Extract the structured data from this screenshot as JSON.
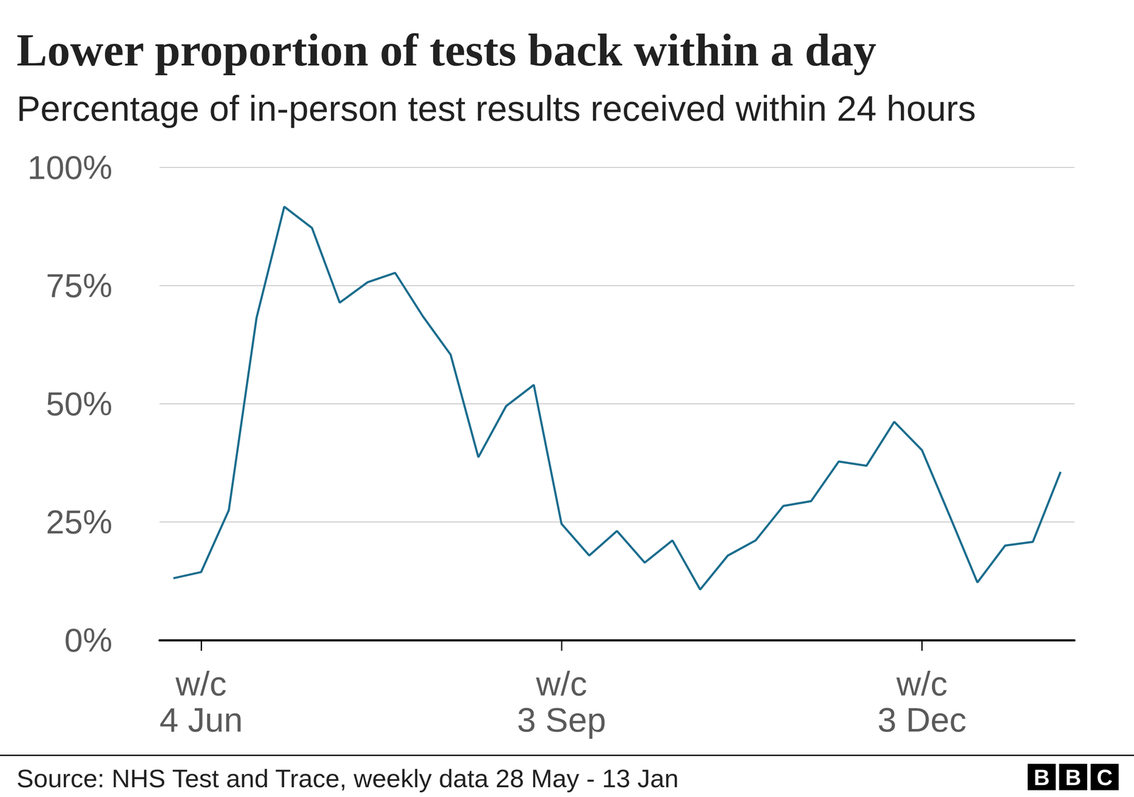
{
  "chart_data": {
    "type": "line",
    "title": "Lower proportion of tests back within a day",
    "subtitle": "Percentage of in-person test results received within 24 hours",
    "source": "Source: NHS Test and Trace, weekly data 28 May - 13 Jan",
    "logo": "BBC",
    "categories": [
      null,
      "w/c\n4 Jun",
      null,
      null,
      null,
      null,
      null,
      null,
      null,
      null,
      null,
      null,
      null,
      null,
      "w/c\n3 Sep",
      null,
      null,
      null,
      null,
      null,
      null,
      null,
      null,
      null,
      null,
      null,
      null,
      "w/c\n3 Dec",
      null,
      null,
      null,
      null,
      null
    ],
    "values": [
      13.1,
      14.4,
      27.5,
      68.2,
      91.7,
      87.2,
      71.4,
      75.7,
      77.7,
      68.5,
      60.4,
      38.7,
      49.5,
      54.0,
      24.6,
      17.9,
      23.1,
      16.4,
      21.1,
      10.7,
      17.9,
      21.1,
      28.4,
      29.4,
      37.8,
      36.9,
      46.2,
      40.2,
      26.3,
      12.2,
      20.0,
      20.8,
      35.6
    ],
    "color": "#1b6d8e",
    "ylim": [
      0,
      100
    ],
    "yticks": [
      {
        "value": 0,
        "label": "0%"
      },
      {
        "value": 25,
        "label": "25%"
      },
      {
        "value": 50,
        "label": "50%"
      },
      {
        "value": 75,
        "label": "75%"
      },
      {
        "value": 100,
        "label": "100%"
      }
    ],
    "grid": true
  }
}
